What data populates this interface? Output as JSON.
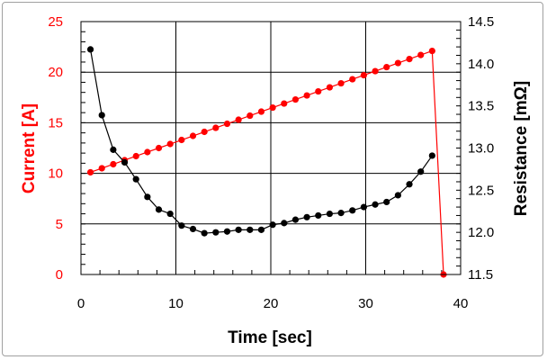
{
  "chart_data": {
    "type": "line",
    "title": "",
    "xlabel": "Time [sec]",
    "ylabel": "Current [A]",
    "y2label": "Resistance [mΩ]",
    "xlim": [
      0,
      40
    ],
    "ylim": [
      0,
      25
    ],
    "y2lim": [
      11.5,
      14.5
    ],
    "xticks": [
      "0",
      "10",
      "20",
      "30",
      "40"
    ],
    "yticks": [
      "0",
      "5",
      "10",
      "15",
      "20",
      "25"
    ],
    "y2ticks": [
      "11.5",
      "12.0",
      "12.5",
      "13.0",
      "13.5",
      "14.0",
      "14.5"
    ],
    "grid": true,
    "colors": {
      "current": "#ff0000",
      "resistance": "#000000",
      "ylabel": "#ff0000"
    },
    "series": [
      {
        "name": "Current",
        "axis": "left",
        "x": [
          1,
          2.2,
          3.4,
          4.6,
          5.8,
          7,
          8.2,
          9.4,
          10.6,
          11.8,
          13,
          14.2,
          15.4,
          16.6,
          17.8,
          19,
          20.2,
          21.4,
          22.6,
          23.8,
          25,
          26.2,
          27.4,
          28.6,
          29.8,
          31,
          32.2,
          33.4,
          34.6,
          35.8,
          37,
          38.2
        ],
        "values": [
          10.1,
          10.5,
          10.9,
          11.3,
          11.7,
          12.1,
          12.5,
          12.9,
          13.3,
          13.7,
          14.1,
          14.5,
          14.9,
          15.3,
          15.7,
          16.1,
          16.5,
          16.9,
          17.3,
          17.7,
          18.1,
          18.5,
          18.9,
          19.3,
          19.7,
          20.1,
          20.5,
          20.9,
          21.3,
          21.7,
          22.1,
          0
        ]
      },
      {
        "name": "Resistance",
        "axis": "right",
        "x": [
          1,
          2.2,
          3.4,
          4.6,
          5.8,
          7,
          8.2,
          9.4,
          10.6,
          11.8,
          13,
          14.2,
          15.4,
          16.6,
          17.8,
          19,
          20.2,
          21.4,
          22.6,
          23.8,
          25,
          26.2,
          27.4,
          28.6,
          29.8,
          31,
          32.2,
          33.4,
          34.6,
          35.8,
          37
        ],
        "values": [
          14.17,
          13.39,
          12.98,
          12.83,
          12.63,
          12.42,
          12.27,
          12.22,
          12.08,
          12.04,
          11.99,
          12.0,
          12.01,
          12.03,
          12.03,
          12.03,
          12.09,
          12.11,
          12.15,
          12.18,
          12.2,
          12.22,
          12.23,
          12.26,
          12.3,
          12.33,
          12.36,
          12.44,
          12.57,
          12.72,
          12.91
        ]
      }
    ]
  }
}
